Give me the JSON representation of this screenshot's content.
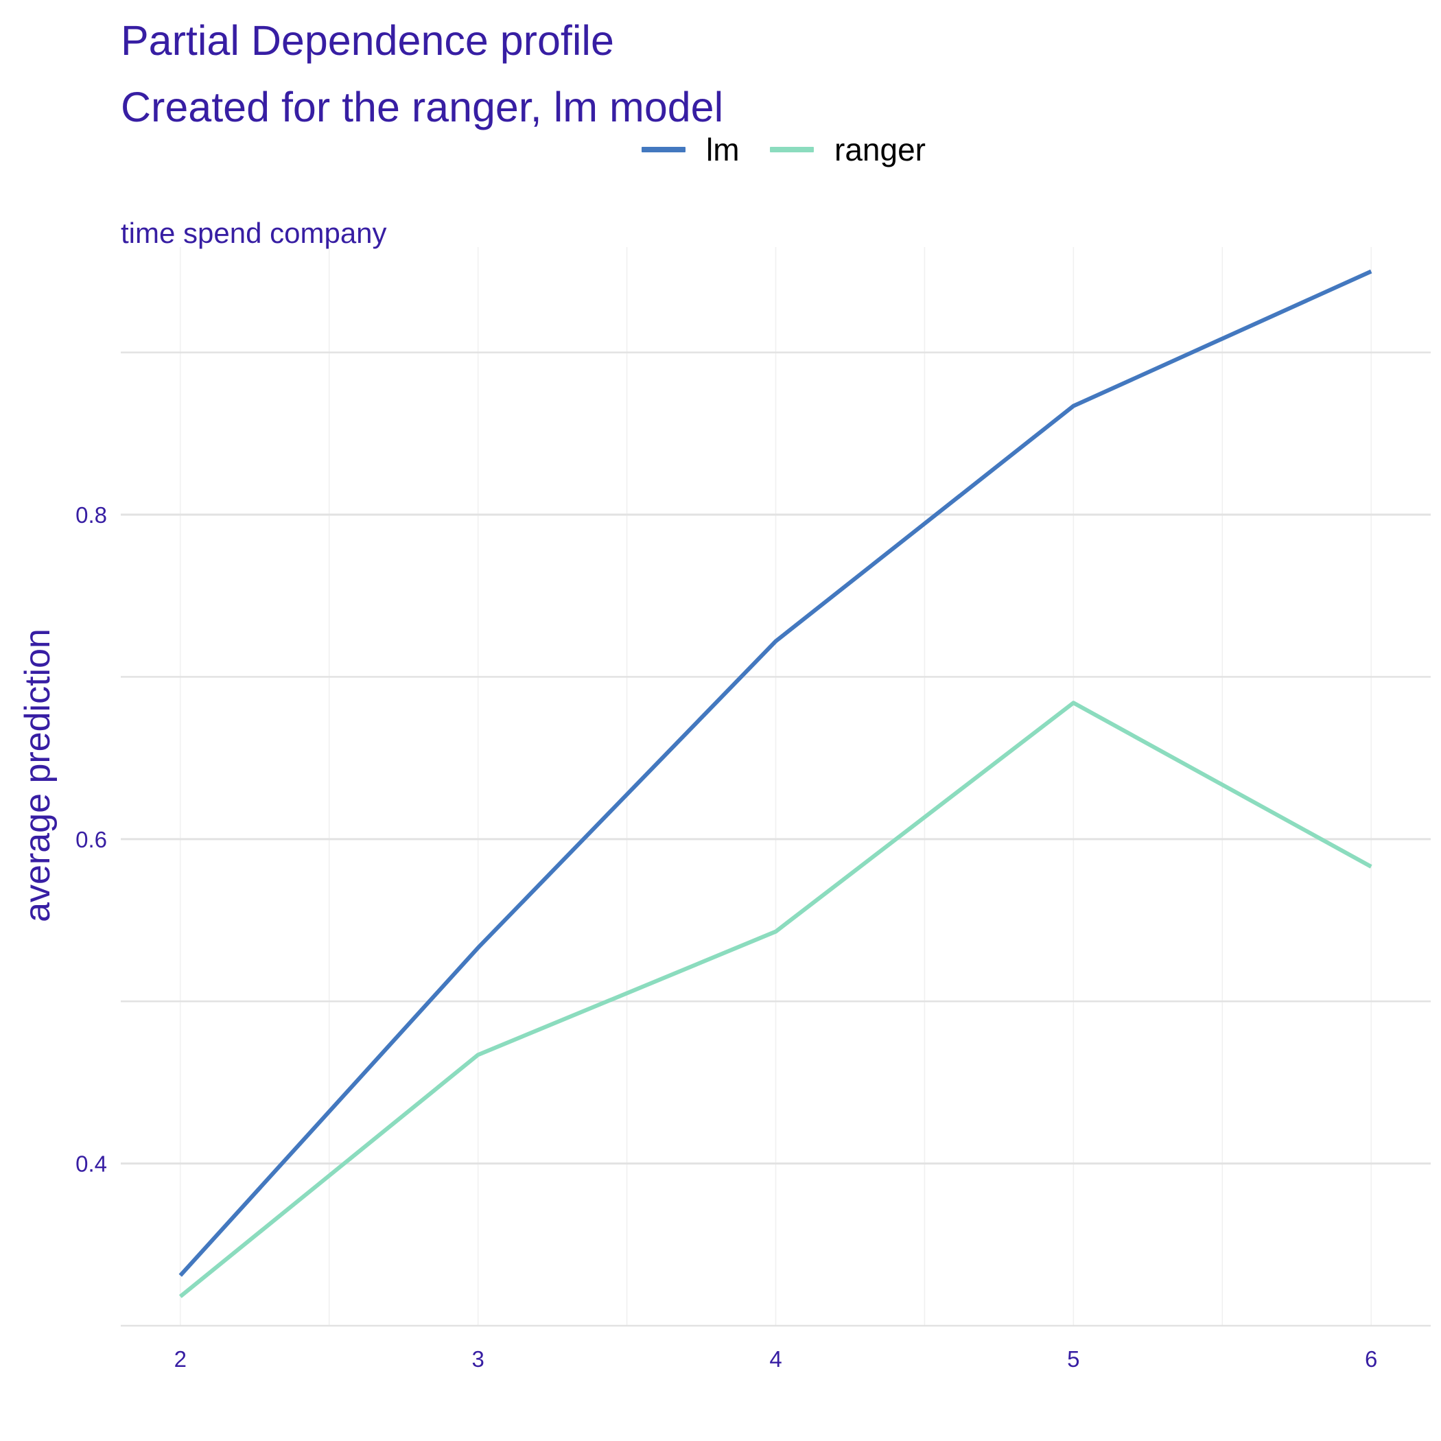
{
  "chart_data": {
    "type": "line",
    "title": "Partial Dependence profile",
    "subtitle": "Created for the ranger, lm model",
    "facet_label": "time  spend  company",
    "xlabel": "",
    "ylabel": "average prediction",
    "x": [
      2,
      3,
      4,
      5,
      6
    ],
    "x_ticks": [
      "2",
      "3",
      "4",
      "5",
      "6"
    ],
    "y_ticks": [
      "0.4",
      "0.6",
      "0.8"
    ],
    "xlim": [
      1.8,
      6.2
    ],
    "ylim": [
      0.3,
      0.965
    ],
    "grid": true,
    "legend_position": "top",
    "series": [
      {
        "name": "lm",
        "color": "#4378bf",
        "values": [
          0.331,
          0.533,
          0.722,
          0.867,
          0.95
        ]
      },
      {
        "name": "ranger",
        "color": "#8bdcbe",
        "values": [
          0.318,
          0.467,
          0.543,
          0.684,
          0.583
        ]
      }
    ]
  }
}
